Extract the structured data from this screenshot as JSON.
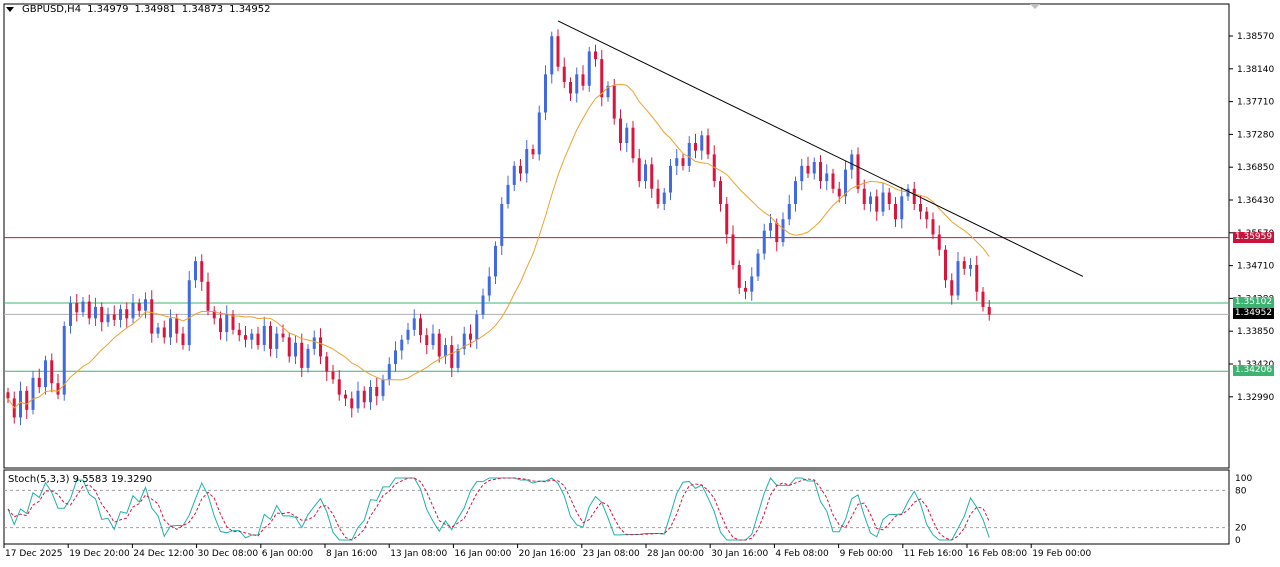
{
  "header": {
    "symbol": "GBPUSD,H4",
    "open": "1.34979",
    "high": "1.34981",
    "low": "1.34873",
    "close": "1.34952"
  },
  "indicator": {
    "label": "Stoch(5,3,3) 9.5583 19.3290",
    "levels": [
      "100",
      "80",
      "20",
      "0"
    ]
  },
  "price_axis": [
    "1.38570",
    "1.38140",
    "1.37710",
    "1.37280",
    "1.36850",
    "1.36430",
    "1.35570",
    "1.34710",
    "1.34280",
    "1.33850",
    "1.33420",
    "1.32990"
  ],
  "price_tags": [
    {
      "text": "1.35959",
      "color": "#c8143c"
    },
    {
      "text": "1.35102",
      "color": "#3cb371"
    },
    {
      "text": "1.34952",
      "color": "#000000"
    },
    {
      "text": "1.34206",
      "color": "#3cb371"
    }
  ],
  "time_axis": [
    "17 Dec 2025",
    "19 Dec 20:00",
    "24 Dec 12:00",
    "30 Dec 08:00",
    "6 Jan 00:00",
    "8 Jan 16:00",
    "13 Jan 08:00",
    "16 Jan 00:00",
    "20 Jan 16:00",
    "23 Jan 08:00",
    "28 Jan 00:00",
    "30 Jan 16:00",
    "4 Feb 08:00",
    "9 Feb 00:00",
    "11 Feb 16:00",
    "16 Feb 08:00",
    "19 Feb 00:00"
  ],
  "colors": {
    "bull": "#4169e1",
    "bear": "#dc143c",
    "ma": "#f0a030",
    "stoch_main": "#20b2aa",
    "stoch_signal": "#dc143c"
  },
  "chart_data": {
    "type": "candlestick",
    "ylim": [
      1.3299,
      1.3897
    ],
    "closes": [
      1.3385,
      1.336,
      1.3395,
      1.337,
      1.3412,
      1.34,
      1.3435,
      1.3405,
      1.339,
      1.348,
      1.351,
      1.3498,
      1.3512,
      1.349,
      1.3505,
      1.3485,
      1.3495,
      1.3488,
      1.3502,
      1.349,
      1.351,
      1.35,
      1.3515,
      1.347,
      1.3478,
      1.3465,
      1.349,
      1.347,
      1.3455,
      1.354,
      1.3565,
      1.3538,
      1.35,
      1.349,
      1.3472,
      1.3495,
      1.3475,
      1.3468,
      1.3462,
      1.347,
      1.3455,
      1.348,
      1.345,
      1.347,
      1.3465,
      1.344,
      1.3458,
      1.3425,
      1.345,
      1.3465,
      1.344,
      1.342,
      1.341,
      1.339,
      1.3385,
      1.3372,
      1.3395,
      1.338,
      1.34,
      1.3388,
      1.341,
      1.343,
      1.3448,
      1.3462,
      1.3475,
      1.349,
      1.3468,
      1.3455,
      1.347,
      1.344,
      1.3455,
      1.3425,
      1.345,
      1.347,
      1.3462,
      1.3495,
      1.352,
      1.3545,
      1.3585,
      1.364,
      1.3665,
      1.369,
      1.368,
      1.3712,
      1.3705,
      1.376,
      1.381,
      1.386,
      1.382,
      1.38,
      1.3785,
      1.381,
      1.3795,
      1.384,
      1.383,
      1.378,
      1.3795,
      1.3752,
      1.372,
      1.374,
      1.37,
      1.367,
      1.3692,
      1.366,
      1.364,
      1.3655,
      1.369,
      1.37,
      1.369,
      1.372,
      1.371,
      1.373,
      1.3705,
      1.367,
      1.364,
      1.36,
      1.356,
      1.353,
      1.3525,
      1.3545,
      1.3575,
      1.3605,
      1.3615,
      1.359,
      1.362,
      1.364,
      1.367,
      1.369,
      1.368,
      1.3695,
      1.367,
      1.368,
      1.366,
      1.365,
      1.3685,
      1.3705,
      1.366,
      1.364,
      1.365,
      1.363,
      1.3655,
      1.364,
      1.362,
      1.365,
      1.366,
      1.364,
      1.363,
      1.362,
      1.36,
      1.358,
      1.354,
      1.352,
      1.3565,
      1.3555,
      1.356,
      1.3525,
      1.3505,
      1.3495
    ],
    "last_price": 1.34952,
    "trendline": {
      "from": [
        88,
        1.388
      ],
      "to": [
        172,
        1.3545
      ]
    },
    "horizontal_lines": [
      1.35959,
      1.35102,
      1.34952,
      1.34206
    ],
    "stoch_levels": [
      80,
      20
    ]
  }
}
